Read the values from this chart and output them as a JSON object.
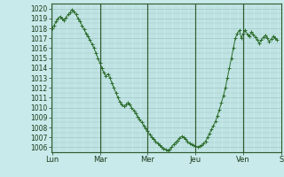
{
  "bg_color": "#c8eaea",
  "grid_color": "#a0c8c8",
  "line_color": "#2d6e2d",
  "marker_color": "#2d6e2d",
  "ylim": [
    1005.5,
    1020.5
  ],
  "yticks": [
    1006,
    1007,
    1008,
    1009,
    1010,
    1011,
    1012,
    1013,
    1014,
    1015,
    1016,
    1017,
    1018,
    1019,
    1020
  ],
  "xtick_labels": [
    "Lun",
    "Mar",
    "Mer",
    "Jeu",
    "Ven",
    "S"
  ],
  "xtick_positions": [
    0,
    24,
    48,
    72,
    96,
    115
  ],
  "vlines": [
    24,
    48,
    72,
    96
  ],
  "data_y": [
    1018.0,
    1018.3,
    1018.7,
    1019.0,
    1019.2,
    1019.0,
    1018.8,
    1019.1,
    1019.4,
    1019.6,
    1019.9,
    1019.7,
    1019.4,
    1019.0,
    1018.7,
    1018.3,
    1017.9,
    1017.5,
    1017.2,
    1016.8,
    1016.4,
    1016.0,
    1015.5,
    1015.0,
    1014.5,
    1014.0,
    1013.5,
    1013.2,
    1013.4,
    1013.0,
    1012.5,
    1012.0,
    1011.5,
    1011.0,
    1010.6,
    1010.3,
    1010.1,
    1010.3,
    1010.5,
    1010.3,
    1010.0,
    1009.7,
    1009.4,
    1009.1,
    1008.8,
    1008.5,
    1008.2,
    1007.9,
    1007.6,
    1007.3,
    1007.0,
    1006.8,
    1006.6,
    1006.4,
    1006.2,
    1006.0,
    1005.9,
    1005.8,
    1005.7,
    1005.8,
    1006.0,
    1006.3,
    1006.5,
    1006.7,
    1006.9,
    1007.1,
    1007.0,
    1006.8,
    1006.6,
    1006.4,
    1006.3,
    1006.2,
    1006.1,
    1006.0,
    1006.1,
    1006.2,
    1006.4,
    1006.6,
    1007.0,
    1007.4,
    1007.8,
    1008.2,
    1008.6,
    1009.2,
    1009.8,
    1010.5,
    1011.2,
    1012.0,
    1013.0,
    1014.0,
    1015.0,
    1016.0,
    1017.0,
    1017.5,
    1017.8,
    1017.0,
    1017.5,
    1017.8,
    1017.4,
    1017.2,
    1017.6,
    1017.4,
    1017.1,
    1016.8,
    1016.5,
    1016.8,
    1017.1,
    1017.3,
    1017.0,
    1016.7,
    1016.9,
    1017.2,
    1017.0,
    1016.8
  ]
}
